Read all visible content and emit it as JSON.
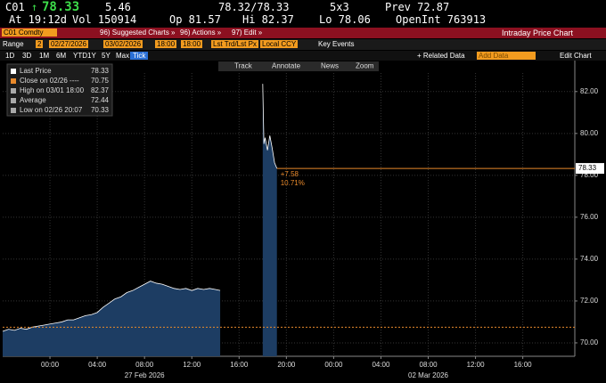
{
  "header": {
    "ticker": "C01",
    "arrow": "↑",
    "last": "78.33",
    "change": "5.46",
    "bid_ask": "78.32/78.33",
    "size": "5x3",
    "prev": "Prev 72.87",
    "time": "At 19:12d",
    "volume": "Vol 150914",
    "open": "Op 81.57",
    "high": "Hi 82.37",
    "low": "Lo 78.06",
    "open_interest": "OpenInt 763913"
  },
  "toolbar": {
    "security": "C01 Comdty",
    "suggested": "96) Suggested Charts »",
    "actions": "96) Actions »",
    "edit": "97) Edit »",
    "title": "Intraday Price Chart"
  },
  "range_bar": {
    "label": "Range",
    "period": "2",
    "start_date": "02/27/2026",
    "end_date": "03/02/2026",
    "start_time": "18:00",
    "end_time": "18:00",
    "field": "Lst Trd/Lst Px",
    "currency": "Local CCY",
    "events": "Key Events"
  },
  "periods": [
    "1D",
    "3D",
    "1M",
    "6M",
    "YTD",
    "1Y",
    "5Y",
    "Max",
    "Tick"
  ],
  "selected_period": "Tick",
  "chart_tools": {
    "related": "+ Related Data",
    "add": "Add Data",
    "edit": "Edit Chart",
    "track": "Track",
    "annotate": "Annotate",
    "news": "News",
    "zoom": "Zoom"
  },
  "chart_data": {
    "type": "line",
    "color": "#ffffff",
    "area_color": "#1d3d63",
    "x": [
      -4,
      -3.5,
      -3,
      -2.5,
      -2,
      -1.5,
      -1,
      -0.5,
      0,
      0.5,
      1,
      1.5,
      2,
      2.5,
      3,
      3.5,
      4,
      4.5,
      5,
      5.5,
      6,
      6.5,
      7,
      7.5,
      8,
      8.5,
      9,
      9.5,
      10,
      10.5,
      11,
      11.5,
      12,
      12.5,
      13,
      13.5,
      14,
      14.4,
      16,
      18,
      18.1,
      18.2,
      18.4,
      18.6,
      18.8,
      19,
      19.2
    ],
    "values": [
      70.55,
      70.65,
      70.6,
      70.7,
      70.65,
      70.75,
      70.8,
      70.85,
      70.9,
      70.95,
      71,
      71.1,
      71.1,
      71.2,
      71.3,
      71.35,
      71.45,
      71.7,
      71.9,
      72.1,
      72.2,
      72.4,
      72.5,
      72.65,
      72.8,
      72.95,
      72.85,
      72.8,
      72.7,
      72.6,
      72.55,
      72.6,
      72.5,
      72.6,
      72.55,
      72.6,
      72.55,
      72.5,
      null,
      82.37,
      79.5,
      79.8,
      79.2,
      79.9,
      79.3,
      78.6,
      78.33
    ],
    "xlim": [
      -4,
      44.4
    ],
    "ylim": [
      69.36,
      83.48
    ],
    "xticks": [
      {
        "value": 0,
        "label": "00:00"
      },
      {
        "value": 4,
        "label": "04:00"
      },
      {
        "value": 8,
        "label": "08:00"
      },
      {
        "value": 12,
        "label": "12:00"
      },
      {
        "value": 16,
        "label": "16:00"
      },
      {
        "value": 20,
        "label": "20:00"
      },
      {
        "value": 24,
        "label": "00:00"
      },
      {
        "value": 28,
        "label": "04:00"
      },
      {
        "value": 32,
        "label": "08:00"
      },
      {
        "value": 36,
        "label": "12:00"
      },
      {
        "value": 40,
        "label": "16:00"
      }
    ],
    "date_labels": [
      {
        "value": 8,
        "label": "27 Feb 2026"
      },
      {
        "value": 32,
        "label": "02 Mar 2026"
      }
    ],
    "yticks": [
      {
        "value": 70,
        "label": "70.00"
      },
      {
        "value": 72,
        "label": "72.00"
      },
      {
        "value": 74,
        "label": "74.00"
      },
      {
        "value": 76,
        "label": "76.00"
      },
      {
        "value": 78,
        "label": "78.00"
      },
      {
        "value": 80,
        "label": "80.00"
      },
      {
        "value": 82,
        "label": "82.00"
      }
    ],
    "grid": true,
    "legend": [
      {
        "label": "Last Price",
        "value": 78.33
      },
      {
        "label": "Close on 02/26 ----",
        "value": 70.75
      },
      {
        "label": "High on 03/01 18:00",
        "value": 82.37
      },
      {
        "label": "Average",
        "value": 72.44
      },
      {
        "label": "Low on 02/26 20:07",
        "value": 70.33
      }
    ],
    "line_color": "#e8892b",
    "change_label": "+7.58",
    "pct_label": "10.71%"
  }
}
